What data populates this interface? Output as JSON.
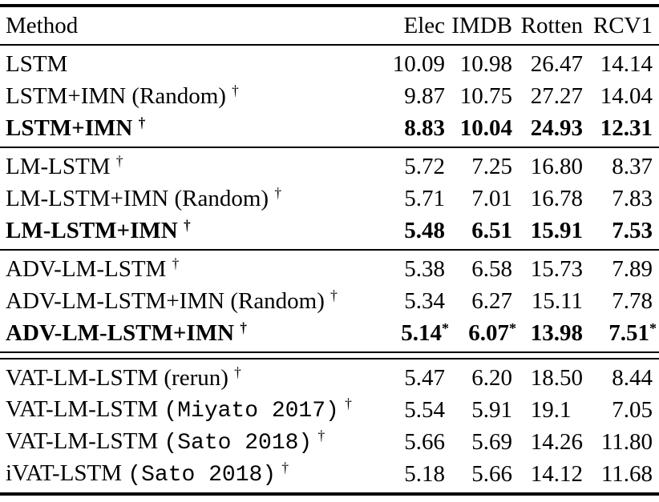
{
  "page": {
    "background_color": "#ffffff",
    "text_color": "#000000",
    "rule_color": "#000000"
  },
  "table": {
    "columns": [
      {
        "label": "Method",
        "align": "left"
      },
      {
        "label": "Elec",
        "align": "right"
      },
      {
        "label": "IMDB",
        "align": "right"
      },
      {
        "label": "Rotten",
        "align": "right"
      },
      {
        "label": "RCV1",
        "align": "right"
      }
    ],
    "groups": [
      {
        "separator_after": "single",
        "rows": [
          {
            "bold": false,
            "method": [
              {
                "t": "LSTM"
              }
            ],
            "values": [
              {
                "v": "10.09"
              },
              {
                "v": "10.98"
              },
              {
                "v": "26.47"
              },
              {
                "v": "14.14"
              }
            ]
          },
          {
            "bold": false,
            "method": [
              {
                "t": "LSTM+IMN (Random)"
              },
              {
                "t": "†",
                "sup": true
              }
            ],
            "values": [
              {
                "v": "9.87"
              },
              {
                "v": "10.75"
              },
              {
                "v": "27.27"
              },
              {
                "v": "14.04"
              }
            ]
          },
          {
            "bold": true,
            "method": [
              {
                "t": "LSTM+IMN"
              },
              {
                "t": "†",
                "sup": true
              }
            ],
            "values": [
              {
                "v": "8.83"
              },
              {
                "v": "10.04"
              },
              {
                "v": "24.93"
              },
              {
                "v": "12.31"
              }
            ]
          }
        ]
      },
      {
        "separator_after": "single",
        "rows": [
          {
            "bold": false,
            "method": [
              {
                "t": "LM-LSTM"
              },
              {
                "t": "†",
                "sup": true
              }
            ],
            "values": [
              {
                "v": "5.72"
              },
              {
                "v": "7.25"
              },
              {
                "v": "16.80"
              },
              {
                "v": "8.37"
              }
            ]
          },
          {
            "bold": false,
            "method": [
              {
                "t": "LM-LSTM+IMN (Random)"
              },
              {
                "t": "†",
                "sup": true
              }
            ],
            "values": [
              {
                "v": "5.71"
              },
              {
                "v": "7.01"
              },
              {
                "v": "16.78"
              },
              {
                "v": "7.83"
              }
            ]
          },
          {
            "bold": true,
            "method": [
              {
                "t": "LM-LSTM+IMN"
              },
              {
                "t": "†",
                "sup": true
              }
            ],
            "values": [
              {
                "v": "5.48"
              },
              {
                "v": "6.51"
              },
              {
                "v": "15.91"
              },
              {
                "v": "7.53"
              }
            ]
          }
        ]
      },
      {
        "separator_after": "double",
        "rows": [
          {
            "bold": false,
            "method": [
              {
                "t": "ADV-LM-LSTM"
              },
              {
                "t": "†",
                "sup": true
              }
            ],
            "values": [
              {
                "v": "5.38"
              },
              {
                "v": "6.58"
              },
              {
                "v": "15.73"
              },
              {
                "v": "7.89"
              }
            ]
          },
          {
            "bold": false,
            "method": [
              {
                "t": "ADV-LM-LSTM+IMN (Random)"
              },
              {
                "t": "†",
                "sup": true
              }
            ],
            "values": [
              {
                "v": "5.34"
              },
              {
                "v": "6.27"
              },
              {
                "v": "15.11"
              },
              {
                "v": "7.78"
              }
            ]
          },
          {
            "bold": true,
            "method": [
              {
                "t": "ADV-LM-LSTM+IMN"
              },
              {
                "t": "†",
                "sup": true
              }
            ],
            "values": [
              {
                "v": "5.14",
                "star": "*"
              },
              {
                "v": "6.07",
                "star": "*"
              },
              {
                "v": "13.98"
              },
              {
                "v": "7.51",
                "star": "*"
              }
            ]
          }
        ]
      },
      {
        "separator_after": null,
        "rows": [
          {
            "bold": false,
            "method": [
              {
                "t": "VAT-LM-LSTM (rerun) "
              },
              {
                "t": "†",
                "sup": true
              }
            ],
            "values": [
              {
                "v": "5.47"
              },
              {
                "v": "6.20"
              },
              {
                "v": "18.50"
              },
              {
                "v": "8.44"
              }
            ]
          },
          {
            "bold": false,
            "method": [
              {
                "t": "VAT-LM-LSTM "
              },
              {
                "t": "(Miyato 2017)",
                "mono": true
              },
              {
                "t": "†",
                "sup": true
              }
            ],
            "values": [
              {
                "v": "5.54"
              },
              {
                "v": "5.91"
              },
              {
                "v": "19.1",
                "pad": true
              },
              {
                "v": "7.05"
              }
            ]
          },
          {
            "bold": false,
            "method": [
              {
                "t": "VAT-LM-LSTM "
              },
              {
                "t": "(Sato 2018)",
                "mono": true
              },
              {
                "t": "†",
                "sup": true
              }
            ],
            "values": [
              {
                "v": "5.66"
              },
              {
                "v": "5.69"
              },
              {
                "v": "14.26"
              },
              {
                "v": "11.80"
              }
            ]
          },
          {
            "bold": false,
            "method": [
              {
                "t": "iVAT-LSTM "
              },
              {
                "t": "(Sato 2018)",
                "mono": true
              },
              {
                "t": "†",
                "sup": true
              }
            ],
            "values": [
              {
                "v": "5.18"
              },
              {
                "v": "5.66"
              },
              {
                "v": "14.12"
              },
              {
                "v": "11.68"
              }
            ]
          }
        ]
      }
    ]
  }
}
